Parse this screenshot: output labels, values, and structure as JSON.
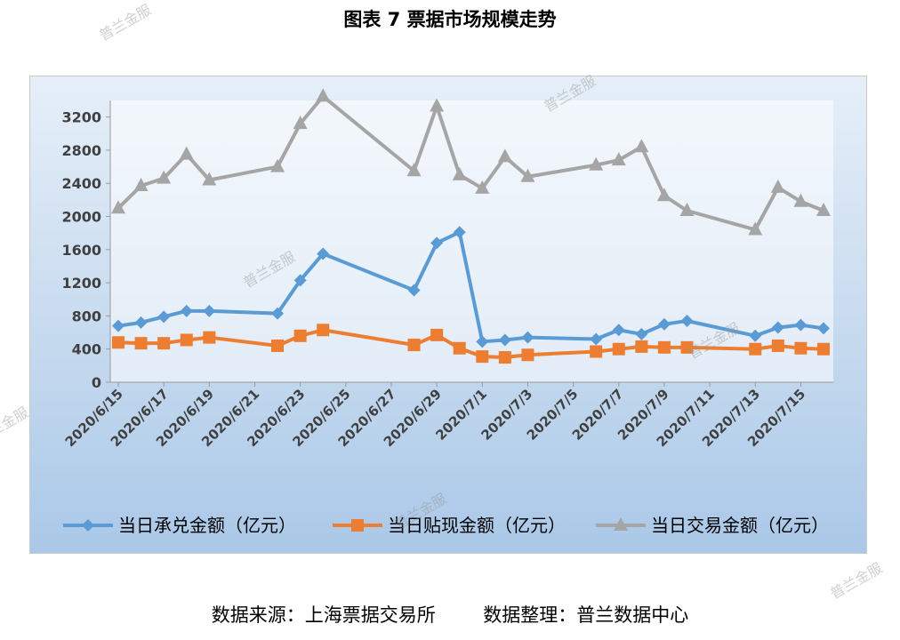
{
  "title": "图表 7  票据市场规模走势",
  "source_text": "数据来源：上海票据交易所        数据整理：普兰数据中心",
  "watermark": "普兰金服",
  "colors": {
    "series1": "#5b9bd5",
    "series2": "#ed7d31",
    "series3": "#a5a5a5"
  },
  "chart_data": {
    "type": "line",
    "ylim": [
      0,
      3400
    ],
    "yticks": [
      0,
      400,
      800,
      1200,
      1600,
      2000,
      2400,
      2800,
      3200
    ],
    "x_start": "2020/6/15",
    "x_end": "2020/7/16",
    "xtick_labels": [
      "2020/6/15",
      "2020/6/17",
      "2020/6/19",
      "2020/6/21",
      "2020/6/23",
      "2020/6/25",
      "2020/6/27",
      "2020/6/29",
      "2020/7/1",
      "2020/7/3",
      "2020/7/5",
      "2020/7/7",
      "2020/7/9",
      "2020/7/11",
      "2020/7/13",
      "2020/7/15"
    ],
    "dates": [
      "2020/6/15",
      "2020/6/16",
      "2020/6/17",
      "2020/6/18",
      "2020/6/19",
      "2020/6/22",
      "2020/6/23",
      "2020/6/24",
      "2020/6/28",
      "2020/6/29",
      "2020/6/30",
      "2020/7/1",
      "2020/7/2",
      "2020/7/3",
      "2020/7/6",
      "2020/7/7",
      "2020/7/8",
      "2020/7/9",
      "2020/7/10",
      "2020/7/13",
      "2020/7/14",
      "2020/7/15",
      "2020/7/16"
    ],
    "grid": false,
    "legend_position": "bottom",
    "series": [
      {
        "name": "当日承兑金额（亿元）",
        "marker": "diamond",
        "values": [
          680,
          720,
          790,
          860,
          860,
          830,
          1230,
          1550,
          1110,
          1680,
          1810,
          490,
          510,
          540,
          520,
          630,
          580,
          700,
          740,
          560,
          660,
          690,
          650
        ]
      },
      {
        "name": "当日贴现金额（亿元）",
        "marker": "square",
        "values": [
          480,
          470,
          470,
          510,
          540,
          440,
          560,
          630,
          450,
          570,
          410,
          310,
          300,
          330,
          370,
          400,
          430,
          420,
          420,
          400,
          440,
          410,
          400
        ]
      },
      {
        "name": "当日交易金额（亿元）",
        "marker": "triangle",
        "values": [
          2100,
          2370,
          2460,
          2750,
          2440,
          2600,
          3120,
          3450,
          2550,
          3330,
          2500,
          2340,
          2720,
          2480,
          2620,
          2680,
          2840,
          2250,
          2070,
          1840,
          2350,
          2180,
          2070
        ]
      }
    ]
  }
}
